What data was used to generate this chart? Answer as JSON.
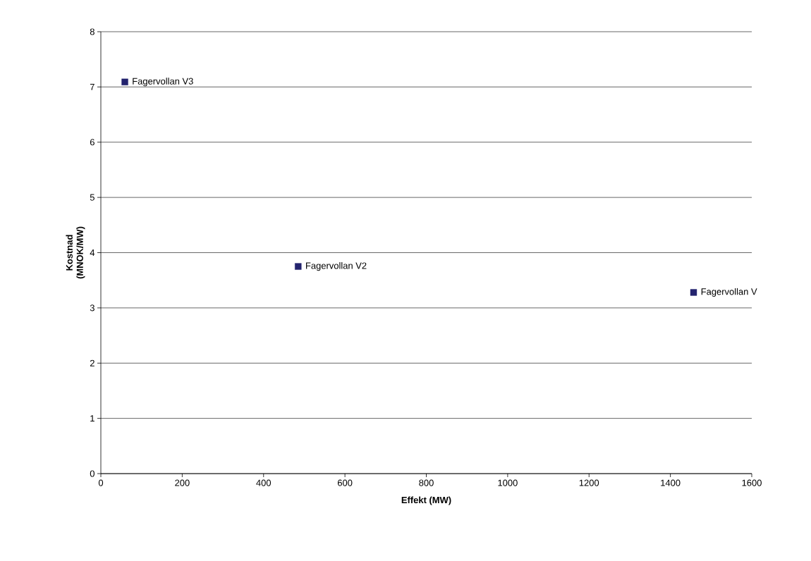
{
  "chart_data": {
    "type": "scatter",
    "xlabel": "Effekt (MW)",
    "ylabel": "Kostnad (MNOK/MW)",
    "x": [
      59,
      485,
      1457
    ],
    "values": [
      7.09,
      3.75,
      3.28
    ],
    "color": "#23236e",
    "marker": "square",
    "xlim": [
      0,
      1600
    ],
    "xticks": [
      0,
      200,
      400,
      600,
      800,
      1000,
      1200,
      1400,
      1600
    ],
    "ylim": [
      0,
      8
    ],
    "yticks": [
      0,
      1,
      2,
      3,
      4,
      5,
      6,
      7,
      8
    ],
    "grid": "y",
    "annotations": [
      {
        "text": "Fagervollan V3",
        "x": 59,
        "y": 7.09
      },
      {
        "text": "Fagervollan V2",
        "x": 485,
        "y": 3.75
      },
      {
        "text": "Fagervollan V",
        "x": 1457,
        "y": 3.28
      }
    ]
  }
}
